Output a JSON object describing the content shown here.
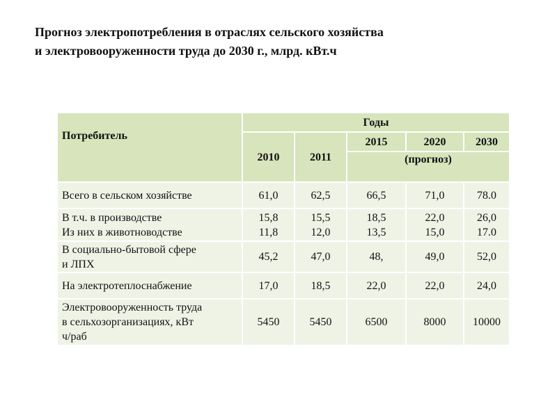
{
  "title": [
    "Прогноз электропотребления в отраслях сельского хозяйства",
    "и электровооруженности труда до 2030 г., млрд. кВт.ч"
  ],
  "table": {
    "header": {
      "consumer": "Потребитель",
      "years_group": "Годы",
      "years": [
        "2010",
        "2011",
        "2015",
        "2020",
        "2030"
      ],
      "forecast": "(прогноз)"
    },
    "rows": [
      {
        "label": [
          "Всего в сельском хозяйстве"
        ],
        "values": [
          [
            "61,0"
          ],
          [
            "62,5"
          ],
          [
            "66,5"
          ],
          [
            "71,0"
          ],
          [
            "78.0"
          ]
        ]
      },
      {
        "label": [
          "В т.ч. в производстве",
          "Из них в животноводстве"
        ],
        "values": [
          [
            "15,8",
            "11,8"
          ],
          [
            "15,5",
            "12,0"
          ],
          [
            "18,5",
            "13,5"
          ],
          [
            "22,0",
            "15,0"
          ],
          [
            "26,0",
            "17.0"
          ]
        ]
      },
      {
        "label": [
          "В социально-бытовой сфере",
          "и ЛПХ"
        ],
        "values": [
          [
            "45,2"
          ],
          [
            "47,0"
          ],
          [
            "48,"
          ],
          [
            "49,0"
          ],
          [
            "52,0"
          ]
        ]
      },
      {
        "label": [
          "На электротеплоснабжение"
        ],
        "values": [
          [
            "17,0"
          ],
          [
            "18,5"
          ],
          [
            "22,0"
          ],
          [
            "22,0"
          ],
          [
            "24,0"
          ]
        ]
      },
      {
        "label": [
          "Электровооруженность труда",
          "в сельхозорганизациях, кВт",
          "ч/раб"
        ],
        "values": [
          [
            "5450"
          ],
          [
            "5450"
          ],
          [
            "6500"
          ],
          [
            "8000"
          ],
          [
            "10000"
          ]
        ]
      }
    ]
  }
}
